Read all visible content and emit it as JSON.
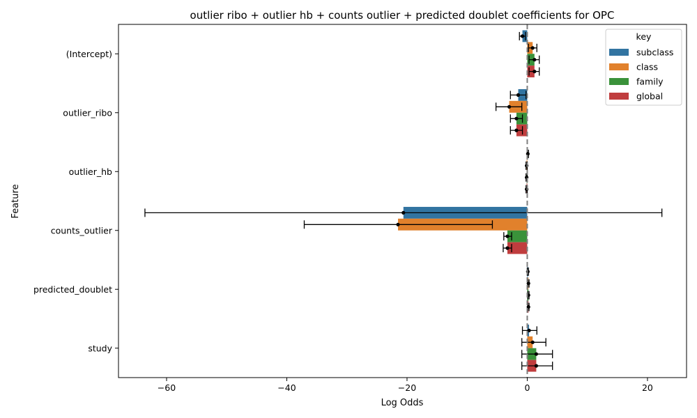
{
  "chart_data": {
    "type": "bar",
    "orientation": "horizontal",
    "title": "outlier ribo + outlier hb + counts outlier + predicted doublet coefficients for OPC",
    "xlabel": "Log Odds",
    "ylabel": "Feature",
    "xlim": [
      -68,
      26.5
    ],
    "xticks": [
      -60,
      -40,
      -20,
      0,
      20
    ],
    "xtick_labels": [
      "−60",
      "−40",
      "−20",
      "0",
      "20"
    ],
    "reference_line": 0,
    "grid": false,
    "legend": {
      "title": "key",
      "position": "top-right"
    },
    "categories": [
      "(Intercept)",
      "outlier_ribo",
      "outlier_hb",
      "counts_outlier",
      "predicted_doublet",
      "study"
    ],
    "series": [
      {
        "name": "subclass",
        "color": "#3274a1",
        "values": [
          -0.8,
          -1.5,
          0.1,
          -20.6,
          0.1,
          0.3
        ],
        "ci_low": [
          -1.3,
          -2.8,
          0.0,
          -63.6,
          0.0,
          -0.8
        ],
        "ci_high": [
          -0.3,
          -0.2,
          0.2,
          22.4,
          0.2,
          1.6
        ]
      },
      {
        "name": "class",
        "color": "#e1812c",
        "values": [
          0.9,
          -3.0,
          -0.1,
          -21.5,
          0.2,
          0.9
        ],
        "ci_low": [
          0.2,
          -5.2,
          -0.2,
          -37.1,
          0.1,
          -0.9
        ],
        "ci_high": [
          1.6,
          -0.9,
          0.0,
          -5.8,
          0.3,
          3.1
        ]
      },
      {
        "name": "family",
        "color": "#3a923a",
        "values": [
          1.2,
          -1.8,
          -0.1,
          -3.3,
          0.2,
          1.5
        ],
        "ci_low": [
          0.3,
          -2.8,
          -0.2,
          -3.9,
          0.1,
          -0.9
        ],
        "ci_high": [
          2.0,
          -0.8,
          0.0,
          -2.6,
          0.3,
          4.2
        ]
      },
      {
        "name": "global",
        "color": "#c03d3e",
        "values": [
          1.2,
          -1.8,
          -0.1,
          -3.3,
          0.2,
          1.5
        ],
        "ci_low": [
          0.3,
          -2.8,
          -0.2,
          -4.0,
          0.1,
          -0.9
        ],
        "ci_high": [
          2.0,
          -0.8,
          0.0,
          -2.6,
          0.3,
          4.2
        ]
      }
    ]
  }
}
